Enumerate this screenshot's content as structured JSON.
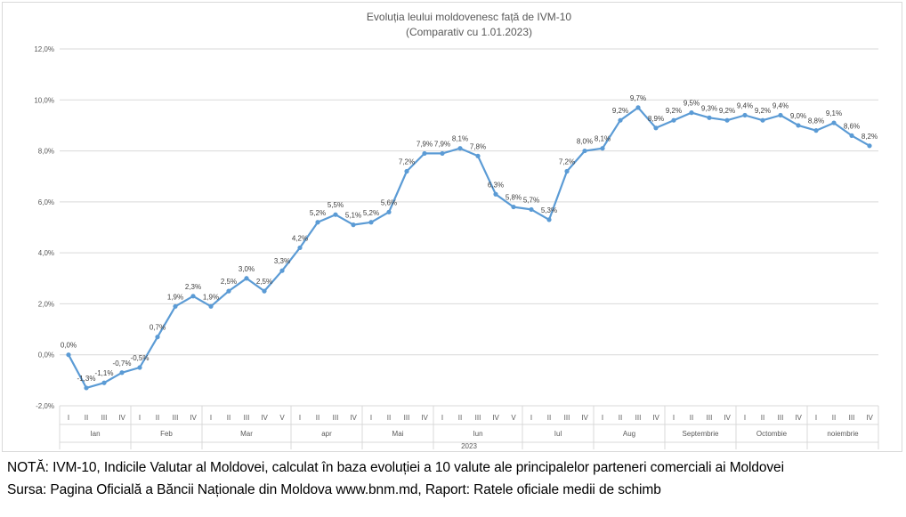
{
  "chart_data": {
    "type": "line",
    "title": "Evoluția leului moldovenesc față de IVM-10",
    "subtitle": "(Comparativ cu 1.01.2023)",
    "ylim": [
      -2,
      12
    ],
    "yticks": [
      "-2,0%",
      "0,0%",
      "2,0%",
      "4,0%",
      "6,0%",
      "8,0%",
      "10,0%",
      "12,0%"
    ],
    "ytick_values": [
      -2,
      0,
      2,
      4,
      6,
      8,
      10,
      12
    ],
    "year_label": "2023",
    "line_color": "#5b9bd5",
    "grid": true,
    "months": [
      {
        "label": "Ian",
        "weeks": [
          "I",
          "II",
          "III",
          "IV"
        ]
      },
      {
        "label": "Feb",
        "weeks": [
          "I",
          "II",
          "III",
          "IV"
        ]
      },
      {
        "label": "Mar",
        "weeks": [
          "I",
          "II",
          "III",
          "IV",
          "V"
        ]
      },
      {
        "label": "apr",
        "weeks": [
          "I",
          "II",
          "III",
          "IV"
        ]
      },
      {
        "label": "Mai",
        "weeks": [
          "I",
          "II",
          "III",
          "IV"
        ]
      },
      {
        "label": "Iun",
        "weeks": [
          "I",
          "II",
          "III",
          "IV",
          "V"
        ]
      },
      {
        "label": "Iul",
        "weeks": [
          "I",
          "II",
          "III",
          "IV"
        ]
      },
      {
        "label": "Aug",
        "weeks": [
          "I",
          "II",
          "III",
          "IV"
        ]
      },
      {
        "label": "Septembrie",
        "weeks": [
          "I",
          "II",
          "III",
          "IV"
        ]
      },
      {
        "label": "Octombie",
        "weeks": [
          "I",
          "II",
          "III",
          "IV"
        ]
      },
      {
        "label": "noiembrie",
        "weeks": [
          "I",
          "II",
          "III",
          "IV"
        ]
      }
    ],
    "values": [
      0.0,
      -1.3,
      -1.1,
      -0.7,
      -0.5,
      0.7,
      1.9,
      2.3,
      1.9,
      2.5,
      3.0,
      2.5,
      3.3,
      4.2,
      5.2,
      5.5,
      5.1,
      5.2,
      5.6,
      7.2,
      7.9,
      7.9,
      8.1,
      7.8,
      6.3,
      5.8,
      5.7,
      5.3,
      7.2,
      8.0,
      8.1,
      9.2,
      9.7,
      8.9,
      9.2,
      9.5,
      9.3,
      9.2,
      9.4,
      9.2,
      9.4,
      9.0,
      8.8,
      9.1,
      8.6,
      8.2
    ],
    "data_labels": [
      "0,0%",
      "-1,3%",
      "-1,1%",
      "-0,7%",
      "-0,5%",
      "0,7%",
      "1,9%",
      "2,3%",
      "1,9%",
      "2,5%",
      "3,0%",
      "2,5%",
      "3,3%",
      "4,2%",
      "5,2%",
      "5,5%",
      "5,1%",
      "5,2%",
      "5,6%",
      "7,2%",
      "7,9%",
      "7,9%",
      "8,1%",
      "7,8%",
      "6,3%",
      "5,8%",
      "5,7%",
      "5,3%",
      "7,2%",
      "8,0%",
      "8,1%",
      "9,2%",
      "9,7%",
      "8,9%",
      "9,2%",
      "9,5%",
      "9,3%",
      "9,2%",
      "9,4%",
      "9,2%",
      "9,4%",
      "9,0%",
      "8,8%",
      "9,1%",
      "8,6%",
      "8,2%"
    ]
  },
  "footer": {
    "note": "NOTĂ: IVM-10, Indicile Valutar al Moldovei, calculat în baza evoluției a 10 valute ale principalelor parteneri comerciali ai Moldovei",
    "source": "Sursa: Pagina Oficială a Băncii Naționale din Moldova www.bnm.md, Raport: Ratele oficiale medii de schimb"
  }
}
